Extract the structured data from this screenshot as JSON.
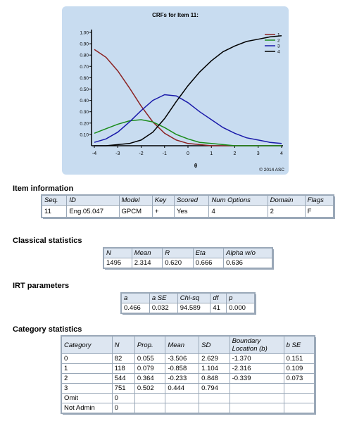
{
  "chart": {
    "copyright": "© 2014 ASC"
  },
  "chart_data": {
    "type": "line",
    "title": "CRFs for Item 11:",
    "xlabel": "θ",
    "ylabel": "",
    "xlim": [
      -4,
      4
    ],
    "ylim": [
      0,
      1.0
    ],
    "x_ticks": [
      "-4",
      "-3",
      "-2",
      "-1",
      "0",
      "1",
      "2",
      "3",
      "4"
    ],
    "y_ticks": [
      "0.10",
      "0.20",
      "0.30",
      "0.40",
      "0.50",
      "0.60",
      "0.70",
      "0.80",
      "0.90",
      "1.00"
    ],
    "legend_position": "top-right",
    "x": [
      -4,
      -3.5,
      -3,
      -2.5,
      -2,
      -1.5,
      -1,
      -0.5,
      0,
      0.5,
      1,
      1.5,
      2,
      2.5,
      3,
      3.5,
      4
    ],
    "series": [
      {
        "name": "1",
        "color": "#8b2323",
        "values": [
          0.85,
          0.78,
          0.66,
          0.51,
          0.35,
          0.21,
          0.11,
          0.05,
          0.02,
          0.01,
          0.0,
          0.0,
          0.0,
          0.0,
          0.0,
          0.0,
          0.0
        ]
      },
      {
        "name": "2",
        "color": "#1a8c1a",
        "values": [
          0.11,
          0.15,
          0.19,
          0.22,
          0.23,
          0.21,
          0.16,
          0.1,
          0.06,
          0.03,
          0.02,
          0.01,
          0.0,
          0.0,
          0.0,
          0.0,
          0.0
        ]
      },
      {
        "name": "3",
        "color": "#1a1aaa",
        "values": [
          0.03,
          0.06,
          0.12,
          0.21,
          0.31,
          0.4,
          0.45,
          0.44,
          0.38,
          0.3,
          0.23,
          0.16,
          0.11,
          0.07,
          0.05,
          0.03,
          0.02
        ]
      },
      {
        "name": "4",
        "color": "#000000",
        "values": [
          0.0,
          0.0,
          0.01,
          0.02,
          0.05,
          0.12,
          0.24,
          0.39,
          0.53,
          0.65,
          0.75,
          0.83,
          0.88,
          0.92,
          0.94,
          0.96,
          0.97
        ]
      }
    ]
  },
  "item_info": {
    "heading": "Item information",
    "headers": [
      "Seq.",
      "ID",
      "Model",
      "Key",
      "Scored",
      "Num Options",
      "Domain",
      "Flags"
    ],
    "rows": [
      [
        "11",
        "Eng.05.047",
        "GPCM",
        "+",
        "Yes",
        "4",
        "2",
        "F"
      ]
    ]
  },
  "classical": {
    "heading": "Classical statistics",
    "headers": [
      "N",
      "Mean",
      "R",
      "Eta",
      "Alpha w/o"
    ],
    "rows": [
      [
        "1495",
        "2.314",
        "0.620",
        "0.666",
        "0.636"
      ]
    ]
  },
  "irt": {
    "heading": "IRT parameters",
    "headers": [
      "a",
      "a SE",
      "Chi-sq",
      "df",
      "p"
    ],
    "rows": [
      [
        "0.466",
        "0.032",
        "94.589",
        "41",
        "0.000"
      ]
    ]
  },
  "category": {
    "heading": "Category statistics",
    "headers": [
      "Category",
      "N",
      "Prop.",
      "Mean",
      "SD",
      "Boundary Location (b)",
      "b SE"
    ],
    "rows": [
      [
        "0",
        "82",
        "0.055",
        "-3.506",
        "2.629",
        "-1.370",
        "0.151"
      ],
      [
        "1",
        "118",
        "0.079",
        "-0.858",
        "1.104",
        "-2.316",
        "0.109"
      ],
      [
        "2",
        "544",
        "0.364",
        "-0.233",
        "0.848",
        "-0.339",
        "0.073"
      ],
      [
        "3",
        "751",
        "0.502",
        "0.444",
        "0.794",
        "",
        ""
      ],
      [
        "Omit",
        "0",
        "",
        "",
        "",
        "",
        ""
      ],
      [
        "Not Admin",
        "0",
        "",
        "",
        "",
        "",
        ""
      ]
    ]
  }
}
